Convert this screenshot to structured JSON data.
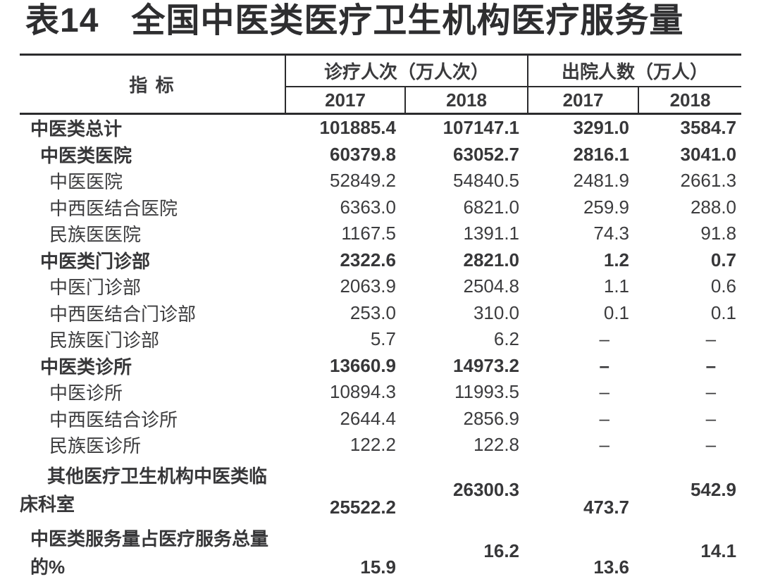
{
  "title": {
    "prefix": "表14",
    "text": "全国中医类医疗卫生机构医疗服务量"
  },
  "table": {
    "header": {
      "indicator": "指 标",
      "group1": "诊疗人次（万人次）",
      "group2": "出院人数（万人）",
      "years": [
        "2017",
        "2018",
        "2017",
        "2018"
      ]
    },
    "rows": [
      {
        "label": "中医类总计",
        "bold": true,
        "indent": 0,
        "values": [
          "101885.4",
          "107147.1",
          "3291.0",
          "3584.7"
        ]
      },
      {
        "label": "中医类医院",
        "bold": true,
        "indent": 1,
        "values": [
          "60379.8",
          "63052.7",
          "2816.1",
          "3041.0"
        ]
      },
      {
        "label": "中医医院",
        "bold": false,
        "indent": 2,
        "values": [
          "52849.2",
          "54840.5",
          "2481.9",
          "2661.3"
        ]
      },
      {
        "label": "中西医结合医院",
        "bold": false,
        "indent": 2,
        "values": [
          "6363.0",
          "6821.0",
          "259.9",
          "288.0"
        ]
      },
      {
        "label": "民族医医院",
        "bold": false,
        "indent": 2,
        "values": [
          "1167.5",
          "1391.1",
          "74.3",
          "91.8"
        ]
      },
      {
        "label": "中医类门诊部",
        "bold": true,
        "indent": 1,
        "values": [
          "2322.6",
          "2821.0",
          "1.2",
          "0.7"
        ]
      },
      {
        "label": "中医门诊部",
        "bold": false,
        "indent": 2,
        "values": [
          "2063.9",
          "2504.8",
          "1.1",
          "0.6"
        ]
      },
      {
        "label": "中西医结合门诊部",
        "bold": false,
        "indent": 2,
        "values": [
          "253.0",
          "310.0",
          "0.1",
          "0.1"
        ]
      },
      {
        "label": "民族医门诊部",
        "bold": false,
        "indent": 2,
        "values": [
          "5.7",
          "6.2",
          "–",
          "–"
        ]
      },
      {
        "label": "中医类诊所",
        "bold": true,
        "indent": 1,
        "values": [
          "13660.9",
          "14973.2",
          "–",
          "–"
        ]
      },
      {
        "label": "中医诊所",
        "bold": false,
        "indent": 2,
        "values": [
          "10894.3",
          "11993.5",
          "–",
          "–"
        ]
      },
      {
        "label": "中西医结合诊所",
        "bold": false,
        "indent": 2,
        "values": [
          "2644.4",
          "2856.9",
          "–",
          "–"
        ]
      },
      {
        "label": "民族医诊所",
        "bold": false,
        "indent": 2,
        "values": [
          "122.2",
          "122.8",
          "–",
          "–"
        ]
      },
      {
        "label": "其他医疗卫生机构中医类临床科室",
        "bold": true,
        "indent": 0,
        "two_line": true,
        "hanging": true,
        "label_lines": [
          "其他医疗卫生机构中医类临",
          "床科室"
        ],
        "values": [
          "25522.2",
          "26300.3",
          "473.7",
          "542.9"
        ]
      },
      {
        "label": "中医类服务量占医疗服务总量的%",
        "bold": true,
        "indent": 0,
        "two_line": true,
        "hanging": false,
        "label_lines": [
          "中医类服务量占医疗服务总量",
          "的%"
        ],
        "values": [
          "15.9",
          "16.2",
          "13.6",
          "14.1"
        ]
      }
    ]
  }
}
